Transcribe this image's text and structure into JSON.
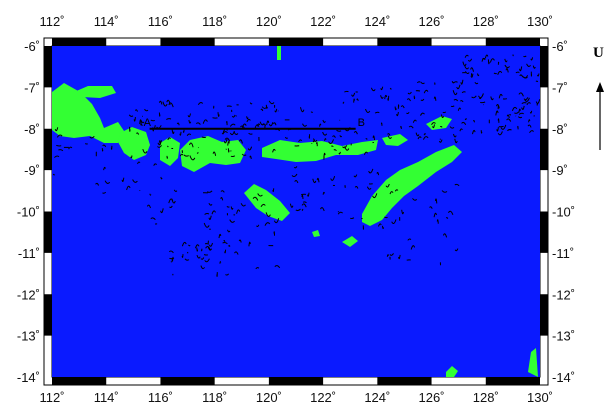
{
  "map": {
    "colors": {
      "sea": "#0a1aff",
      "land": "#33ff33",
      "frame_dark": "#000000",
      "frame_light": "#ffffff",
      "arrow": "#000000"
    },
    "lon_range": [
      112,
      130
    ],
    "lat_range": [
      -14,
      -6
    ],
    "lon_ticks": [
      {
        "value": 112,
        "label": "112˚"
      },
      {
        "value": 114,
        "label": "114˚"
      },
      {
        "value": 116,
        "label": "116˚"
      },
      {
        "value": 118,
        "label": "118˚"
      },
      {
        "value": 120,
        "label": "120˚"
      },
      {
        "value": 122,
        "label": "122˚"
      },
      {
        "value": 124,
        "label": "124˚"
      },
      {
        "value": 126,
        "label": "126˚"
      },
      {
        "value": 128,
        "label": "128˚"
      },
      {
        "value": 130,
        "label": "130˚"
      }
    ],
    "lat_ticks": [
      {
        "value": -6,
        "label": "-6˚"
      },
      {
        "value": -7,
        "label": "-7˚"
      },
      {
        "value": -8,
        "label": "-8˚"
      },
      {
        "value": -9,
        "label": "-9˚"
      },
      {
        "value": -10,
        "label": "-10˚"
      },
      {
        "value": -11,
        "label": "-11˚"
      },
      {
        "value": -12,
        "label": "-12˚"
      },
      {
        "value": -13,
        "label": "-13˚"
      },
      {
        "value": -14,
        "label": "-14˚"
      }
    ],
    "profile": {
      "start_label": "A",
      "end_label": "B",
      "lat": -8,
      "lon_start": 115.6,
      "lon_end": 123.2
    },
    "side_label": "U"
  }
}
